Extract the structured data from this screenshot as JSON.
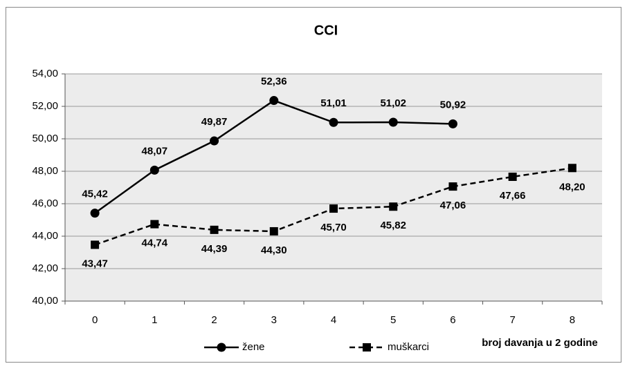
{
  "chart_data": {
    "type": "line",
    "title": "CCI",
    "x_label": "broj davanja u 2 godine",
    "categories": [
      "0",
      "1",
      "2",
      "3",
      "4",
      "5",
      "6",
      "7",
      "8"
    ],
    "series": [
      {
        "name": "žene",
        "color": "#000000",
        "dash": "solid",
        "marker": "circle",
        "label_position": "above",
        "values": [
          45.42,
          48.07,
          49.87,
          52.36,
          51.01,
          51.02,
          50.92,
          null,
          null
        ],
        "value_labels": [
          "45,42",
          "48,07",
          "49,87",
          "52,36",
          "51,01",
          "51,02",
          "50,92",
          null,
          null
        ]
      },
      {
        "name": "muškarci",
        "color": "#000000",
        "dash": "dashed",
        "marker": "square",
        "label_position": "below",
        "values": [
          43.47,
          44.74,
          44.39,
          44.3,
          45.7,
          45.82,
          47.06,
          47.66,
          48.2
        ],
        "value_labels": [
          "43,47",
          "44,74",
          "44,39",
          "44,30",
          "45,70",
          "45,82",
          "47,06",
          "47,66",
          "48,20"
        ]
      }
    ],
    "ylim": [
      40,
      54
    ],
    "yticks": [
      {
        "value": 40,
        "label": "40,00"
      },
      {
        "value": 42,
        "label": "42,00"
      },
      {
        "value": 44,
        "label": "44,00"
      },
      {
        "value": 46,
        "label": "46,00"
      },
      {
        "value": 48,
        "label": "48,00"
      },
      {
        "value": 50,
        "label": "50,00"
      },
      {
        "value": 52,
        "label": "52,00"
      },
      {
        "value": 54,
        "label": "54,00"
      }
    ],
    "grid": true,
    "legend": "bottom"
  }
}
